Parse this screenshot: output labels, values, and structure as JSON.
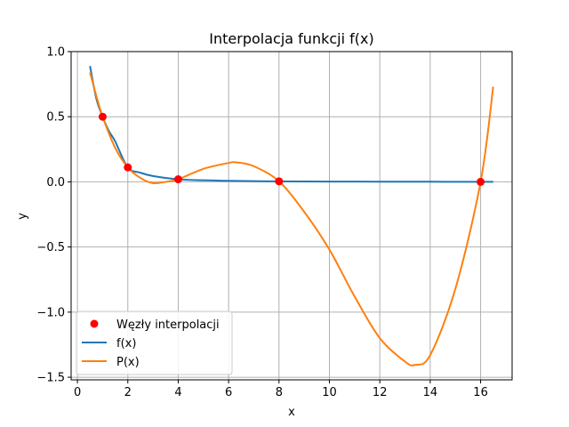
{
  "chart_data": {
    "type": "line",
    "title": "Interpolacja funkcji f(x)",
    "xlabel": "x",
    "ylabel": "y",
    "xlim": [
      -0.25,
      17.25
    ],
    "ylim": [
      -1.52,
      1.0
    ],
    "xticks": [
      0,
      2,
      4,
      6,
      8,
      10,
      12,
      14,
      16
    ],
    "xtick_labels": [
      "0",
      "2",
      "4",
      "6",
      "8",
      "10",
      "12",
      "14",
      "16"
    ],
    "yticks": [
      -1.5,
      -1.0,
      -0.5,
      0.0,
      0.5,
      1.0
    ],
    "ytick_labels": [
      "−1.5",
      "−1.0",
      "−0.5",
      "0.0",
      "0.5",
      "1.0"
    ],
    "grid": true,
    "legend_position": "lower-left",
    "nodes": {
      "name": "Węzły interpolacji",
      "color": "#ff0000",
      "x": [
        1,
        2,
        4,
        8,
        16
      ],
      "y": [
        0.5,
        0.111,
        0.0196,
        0.00385,
        0.0
      ]
    },
    "series": [
      {
        "name": "f(x)",
        "color": "#1f77b4",
        "x": [
          0.5,
          0.75,
          1,
          1.25,
          1.5,
          2,
          2.5,
          3,
          4,
          5,
          6,
          8,
          10,
          12,
          14,
          16,
          16.5
        ],
        "y": [
          0.889,
          0.64,
          0.5,
          0.39,
          0.31,
          0.111,
          0.07,
          0.045,
          0.0196,
          0.012,
          0.008,
          0.0038,
          0.002,
          0.0015,
          0.001,
          0.0,
          0.0
        ]
      },
      {
        "name": "P(x)",
        "color": "#ff7f0e",
        "x": [
          0.5,
          0.75,
          1,
          1.5,
          2,
          2.5,
          3,
          3.5,
          4,
          5,
          6,
          6.3,
          7,
          8,
          9,
          10,
          11,
          12,
          13,
          13.4,
          14,
          15,
          16,
          16.5
        ],
        "y": [
          0.84,
          0.66,
          0.5,
          0.26,
          0.111,
          0.03,
          -0.01,
          0.0,
          0.0196,
          0.1,
          0.145,
          0.15,
          0.12,
          0.0038,
          -0.23,
          -0.52,
          -0.88,
          -1.2,
          -1.38,
          -1.405,
          -1.33,
          -0.82,
          0.0,
          0.73
        ]
      }
    ]
  }
}
